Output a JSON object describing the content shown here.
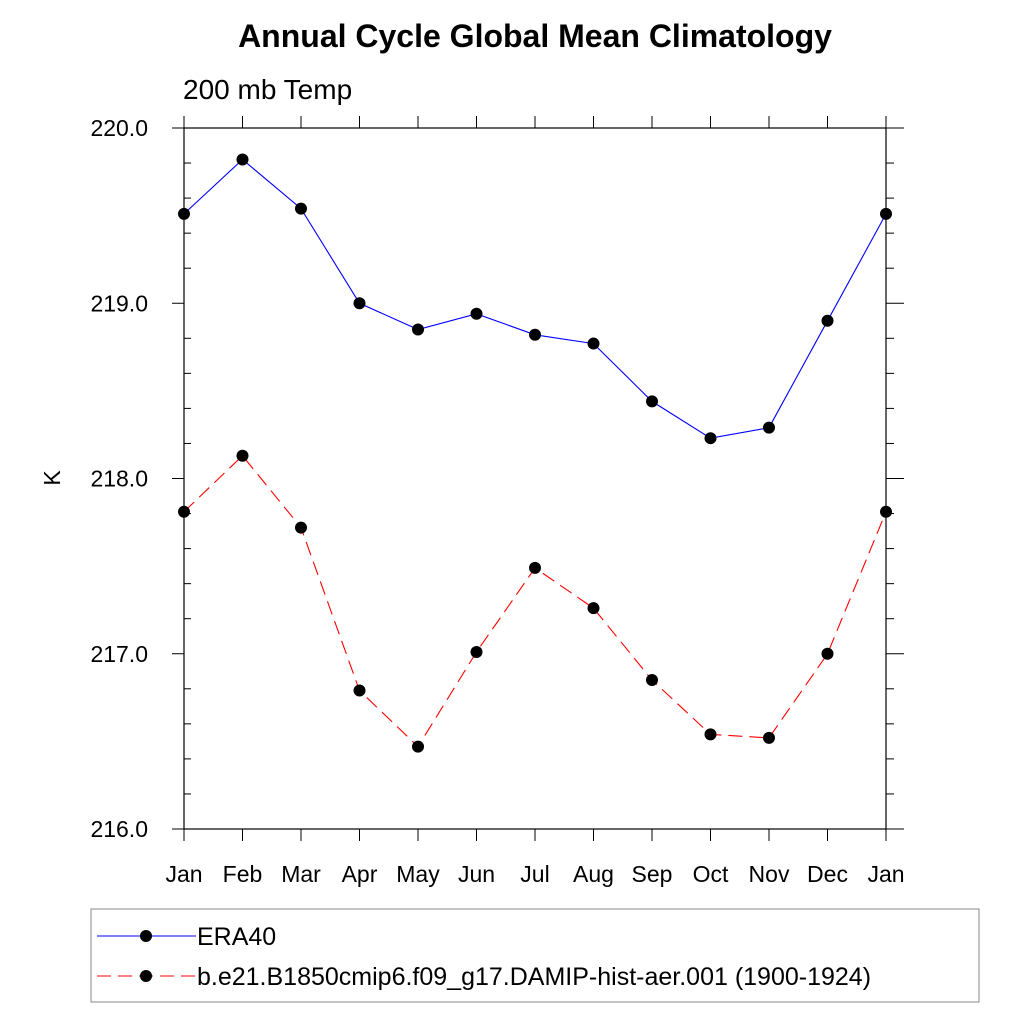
{
  "chart_data": {
    "type": "line",
    "title": "Annual Cycle Global Mean Climatology",
    "subtitle": "200 mb Temp",
    "xlabel": "",
    "ylabel": "K",
    "categories": [
      "Jan",
      "Feb",
      "Mar",
      "Apr",
      "May",
      "Jun",
      "Jul",
      "Aug",
      "Sep",
      "Oct",
      "Nov",
      "Dec",
      "Jan"
    ],
    "ylim": [
      216.0,
      220.0
    ],
    "yticks": [
      "216.0",
      "217.0",
      "218.0",
      "219.0",
      "220.0"
    ],
    "grid": false,
    "legend_position": "bottom",
    "series": [
      {
        "name": "ERA40",
        "color": "#0000ff",
        "dash": "solid",
        "values": [
          219.51,
          219.82,
          219.54,
          219.0,
          218.85,
          218.94,
          218.82,
          218.77,
          218.44,
          218.23,
          218.29,
          218.9,
          219.51
        ]
      },
      {
        "name": "b.e21.B1850cmip6.f09_g17.DAMIP-hist-aer.001 (1900-1924)",
        "color": "#ff0000",
        "dash": "dashed",
        "values": [
          217.81,
          218.13,
          217.72,
          216.79,
          216.47,
          217.01,
          217.49,
          217.26,
          216.85,
          216.54,
          216.52,
          217.0,
          217.81
        ]
      }
    ]
  }
}
